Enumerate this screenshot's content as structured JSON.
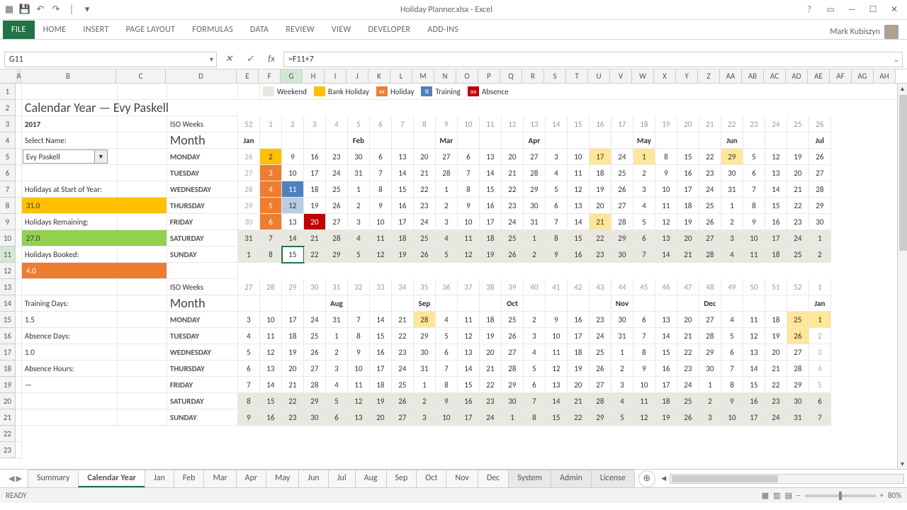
{
  "window": {
    "title": "Holiday Planner.xlsx - Excel"
  },
  "ribbon": {
    "tabs": [
      "FILE",
      "HOME",
      "INSERT",
      "PAGE LAYOUT",
      "FORMULAS",
      "DATA",
      "REVIEW",
      "VIEW",
      "DEVELOPER",
      "ADD-INS"
    ],
    "user": "Mark Kubiszyn"
  },
  "fbar": {
    "name": "G11",
    "formula": "=F11+7"
  },
  "cols": {
    "rowhdr": 25,
    "widths": {
      "B": 135,
      "C": 70,
      "D": 100,
      "E": 31,
      "rest": 31
    },
    "letters": [
      "A",
      "B",
      "C",
      "D",
      "E",
      "F",
      "G",
      "H",
      "I",
      "J",
      "K",
      "L",
      "M",
      "N",
      "O",
      "P",
      "Q",
      "R",
      "S",
      "T",
      "U",
      "V",
      "W",
      "X",
      "Y",
      "Z",
      "AA",
      "AB",
      "AC",
      "AD",
      "AE",
      "AF",
      "AG",
      "AH"
    ]
  },
  "legend": {
    "weekend": "Weekend",
    "bankholiday": "Bank Holiday",
    "bankholiday_code": "xx",
    "holiday": "Holiday",
    "training": "Training",
    "training_code": "tt",
    "absence": "Absence",
    "absence_code": "aa"
  },
  "header": {
    "title": "Calendar Year — Evy Paskell",
    "year": "2017",
    "select_label": "Select Name:",
    "select_value": "Evy Paskell"
  },
  "left": {
    "holidays_start_label": "Holidays at Start of Year:",
    "holidays_start_value": "31.0",
    "holidays_remaining_label": "Holidays Remaining:",
    "holidays_remaining_value": "27.0",
    "holidays_booked_label": "Holidays Booked:",
    "holidays_booked_value": "4.0",
    "training_label": "Training Days:",
    "training_value": "1.5",
    "absence_days_label": "Absence Days:",
    "absence_days_value": "1.0",
    "absence_hours_label": "Absence Hours:",
    "absence_hours_value": "—"
  },
  "labels": {
    "iso": "ISO Weeks",
    "month": "Month",
    "days": [
      "MONDAY",
      "TUESDAY",
      "WEDNESDAY",
      "THURSDAY",
      "FRIDAY",
      "SATURDAY",
      "SUNDAY"
    ]
  },
  "top": {
    "iso": [
      "52",
      "1",
      "2",
      "3",
      "4",
      "5",
      "6",
      "7",
      "8",
      "9",
      "10",
      "11",
      "12",
      "13",
      "14",
      "15",
      "16",
      "17",
      "18",
      "19",
      "20",
      "21",
      "22",
      "23",
      "24",
      "25",
      "26"
    ],
    "months": {
      "0": "Jan",
      "5": "Feb",
      "9": "Mar",
      "13": "Apr",
      "18": "May",
      "22": "Jun",
      "26": "Jul"
    },
    "rows": [
      [
        "26",
        "2",
        "9",
        "16",
        "23",
        "30",
        "6",
        "13",
        "20",
        "27",
        "6",
        "13",
        "20",
        "27",
        "3",
        "10",
        "17",
        "24",
        "1",
        "8",
        "15",
        "22",
        "29",
        "5",
        "12",
        "19",
        "26"
      ],
      [
        "27",
        "3",
        "10",
        "17",
        "24",
        "31",
        "7",
        "14",
        "21",
        "28",
        "7",
        "14",
        "21",
        "28",
        "4",
        "11",
        "18",
        "25",
        "2",
        "9",
        "16",
        "23",
        "30",
        "6",
        "13",
        "20",
        "27"
      ],
      [
        "28",
        "4",
        "11",
        "18",
        "25",
        "1",
        "8",
        "15",
        "22",
        "1",
        "8",
        "15",
        "22",
        "29",
        "5",
        "12",
        "19",
        "26",
        "3",
        "10",
        "17",
        "24",
        "31",
        "7",
        "14",
        "21",
        "28"
      ],
      [
        "29",
        "5",
        "12",
        "19",
        "26",
        "2",
        "9",
        "16",
        "23",
        "2",
        "9",
        "16",
        "23",
        "30",
        "6",
        "13",
        "20",
        "27",
        "4",
        "11",
        "18",
        "25",
        "1",
        "8",
        "15",
        "22",
        "29"
      ],
      [
        "30",
        "6",
        "13",
        "20",
        "27",
        "3",
        "10",
        "17",
        "24",
        "3",
        "10",
        "17",
        "24",
        "31",
        "7",
        "14",
        "21",
        "28",
        "5",
        "12",
        "19",
        "26",
        "2",
        "9",
        "16",
        "23",
        "30"
      ],
      [
        "31",
        "7",
        "14",
        "21",
        "28",
        "4",
        "11",
        "18",
        "25",
        "4",
        "11",
        "18",
        "25",
        "1",
        "8",
        "15",
        "22",
        "29",
        "6",
        "13",
        "20",
        "27",
        "3",
        "10",
        "17",
        "24",
        "1"
      ],
      [
        "1",
        "8",
        "15",
        "22",
        "29",
        "5",
        "12",
        "19",
        "26",
        "5",
        "12",
        "19",
        "26",
        "2",
        "9",
        "16",
        "23",
        "30",
        "7",
        "14",
        "21",
        "28",
        "4",
        "11",
        "18",
        "25",
        "2"
      ]
    ],
    "hl": {
      "0": {
        "0": "dim",
        "1": "yellow",
        "16": "lightyellow",
        "18": "lightyellow",
        "22": "lightyellow"
      },
      "1": {
        "0": "dim",
        "1": "orange"
      },
      "2": {
        "0": "dim",
        "1": "orange",
        "2": "blue"
      },
      "3": {
        "0": "dim",
        "1": "orange",
        "2": "ltblue"
      },
      "4": {
        "0": "dim",
        "1": "orange",
        "3": "red",
        "16": "lightyellow"
      }
    }
  },
  "bot": {
    "iso": [
      "27",
      "28",
      "29",
      "30",
      "31",
      "32",
      "33",
      "34",
      "35",
      "36",
      "37",
      "38",
      "39",
      "40",
      "41",
      "42",
      "43",
      "44",
      "45",
      "46",
      "47",
      "48",
      "49",
      "50",
      "51",
      "52",
      "1"
    ],
    "months": {
      "4": "Aug",
      "8": "Sep",
      "12": "Oct",
      "17": "Nov",
      "21": "Dec",
      "26": "Jan"
    },
    "rows": [
      [
        "3",
        "10",
        "17",
        "24",
        "31",
        "7",
        "14",
        "21",
        "28",
        "4",
        "11",
        "18",
        "25",
        "2",
        "9",
        "16",
        "23",
        "30",
        "6",
        "13",
        "20",
        "27",
        "4",
        "11",
        "18",
        "25",
        "1"
      ],
      [
        "4",
        "11",
        "18",
        "25",
        "1",
        "8",
        "15",
        "22",
        "29",
        "5",
        "12",
        "19",
        "26",
        "3",
        "10",
        "17",
        "24",
        "31",
        "7",
        "14",
        "21",
        "28",
        "5",
        "12",
        "19",
        "26",
        "2"
      ],
      [
        "5",
        "12",
        "19",
        "26",
        "2",
        "9",
        "16",
        "23",
        "30",
        "6",
        "13",
        "20",
        "27",
        "4",
        "11",
        "18",
        "25",
        "1",
        "8",
        "15",
        "22",
        "29",
        "6",
        "13",
        "20",
        "27",
        "3"
      ],
      [
        "6",
        "13",
        "20",
        "27",
        "3",
        "10",
        "17",
        "24",
        "31",
        "7",
        "14",
        "21",
        "28",
        "5",
        "12",
        "19",
        "26",
        "2",
        "9",
        "16",
        "23",
        "30",
        "7",
        "14",
        "21",
        "28",
        "4"
      ],
      [
        "7",
        "14",
        "21",
        "28",
        "4",
        "11",
        "18",
        "25",
        "1",
        "8",
        "15",
        "22",
        "29",
        "6",
        "13",
        "20",
        "27",
        "3",
        "10",
        "17",
        "24",
        "1",
        "8",
        "15",
        "22",
        "29",
        "5"
      ],
      [
        "8",
        "15",
        "22",
        "29",
        "5",
        "12",
        "19",
        "26",
        "2",
        "9",
        "16",
        "23",
        "30",
        "7",
        "14",
        "21",
        "28",
        "4",
        "11",
        "18",
        "25",
        "2",
        "9",
        "16",
        "23",
        "30",
        "6"
      ],
      [
        "9",
        "16",
        "23",
        "30",
        "6",
        "13",
        "20",
        "27",
        "3",
        "10",
        "17",
        "24",
        "1",
        "8",
        "15",
        "22",
        "29",
        "5",
        "12",
        "19",
        "26",
        "3",
        "10",
        "17",
        "24",
        "31",
        "7"
      ]
    ],
    "hl": {
      "0": {
        "8": "lightyellow",
        "25": "lightyellow",
        "26": "lightyellow"
      },
      "1": {
        "25": "lightyellow",
        "26": "dim"
      },
      "2": {
        "26": "dim"
      },
      "3": {
        "26": "dim"
      },
      "4": {
        "26": "dim"
      }
    }
  },
  "sheets": {
    "tabs": [
      "Summary",
      "Calendar Year",
      "Jan",
      "Feb",
      "Mar",
      "Apr",
      "May",
      "Jun",
      "Jul",
      "Aug",
      "Sep",
      "Oct",
      "Nov",
      "Dec",
      "System",
      "Admin",
      "License"
    ],
    "active": "Calendar Year"
  },
  "status": {
    "ready": "READY",
    "zoom": "80%"
  }
}
